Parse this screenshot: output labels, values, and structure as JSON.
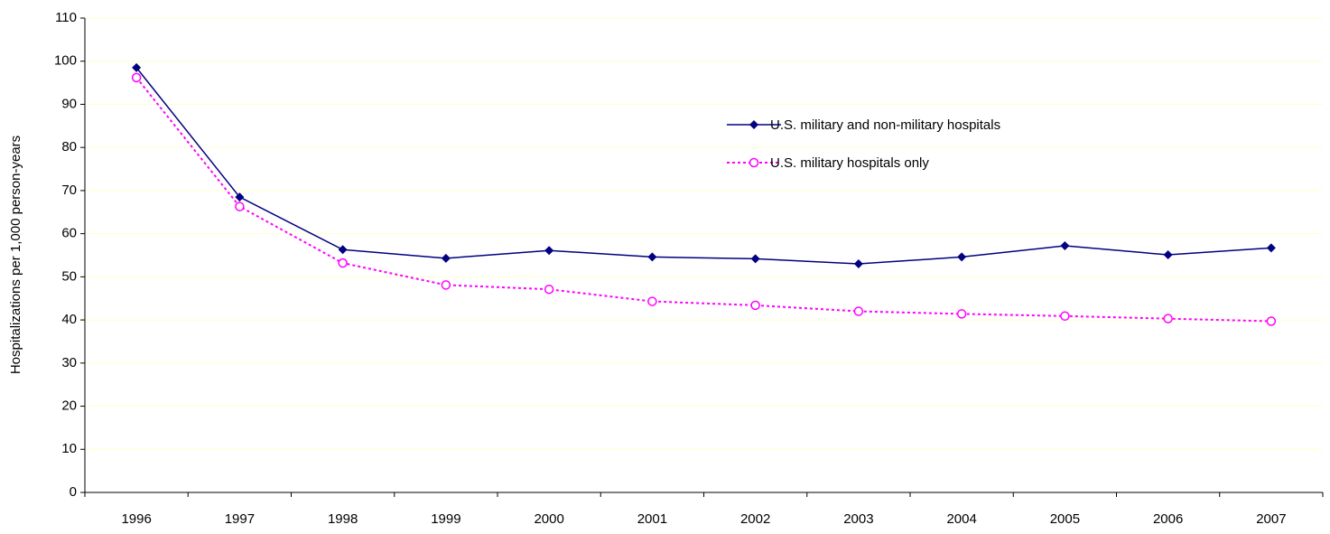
{
  "chart_data": {
    "type": "line",
    "y_label": "Hospitalizations per 1,000 person-years",
    "categories": [
      "1996",
      "1997",
      "1998",
      "1999",
      "2000",
      "2001",
      "2002",
      "2003",
      "2004",
      "2005",
      "2006",
      "2007"
    ],
    "series": [
      {
        "name": "U.S. military and non-military hospitals",
        "color": "#000080",
        "marker": "diamond",
        "dashed": false,
        "values": [
          98.5,
          68.5,
          56.3,
          54.3,
          56.1,
          54.6,
          54.2,
          53,
          54.6,
          57.2,
          55.1,
          56.7
        ]
      },
      {
        "name": "U.S. military hospitals only",
        "color": "#ff00ff",
        "marker": "circle",
        "dashed": true,
        "values": [
          96.2,
          66.3,
          53.2,
          48.1,
          47.1,
          44.3,
          43.4,
          42,
          41.4,
          40.9,
          40.3,
          39.7
        ]
      }
    ],
    "ylim": [
      0,
      110
    ],
    "yticks": [
      0,
      10,
      20,
      30,
      40,
      50,
      60,
      70,
      80,
      90,
      100,
      110
    ],
    "grid": true
  }
}
